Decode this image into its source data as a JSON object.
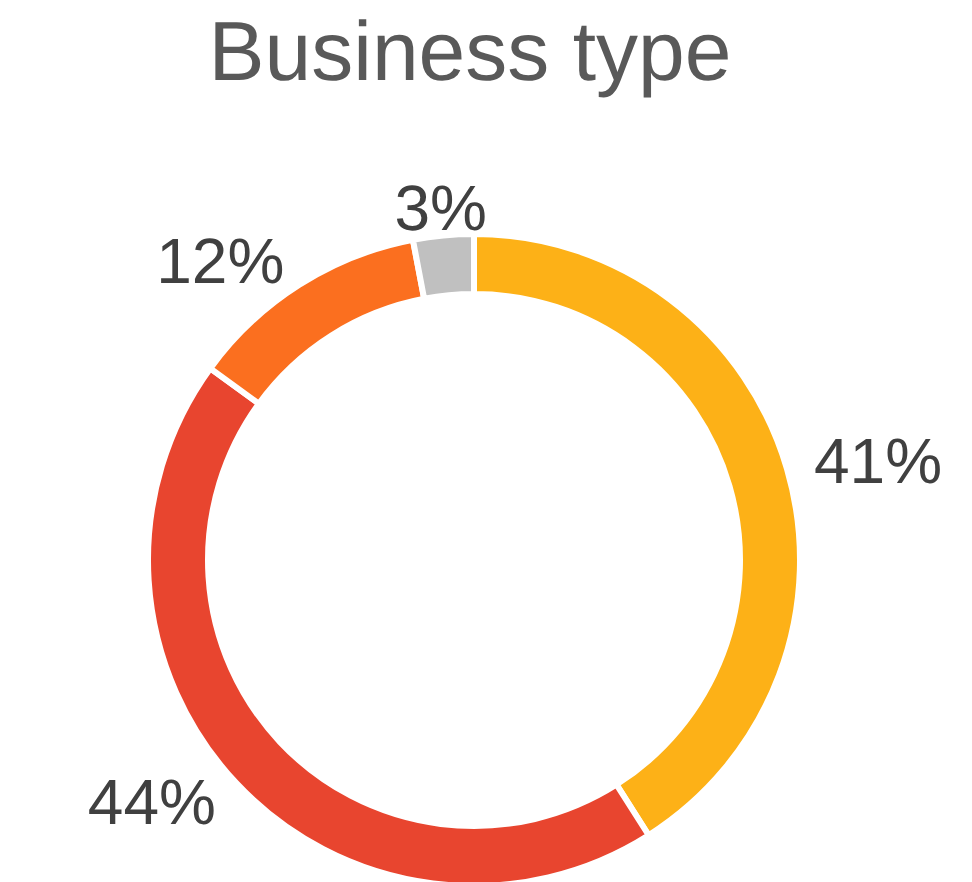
{
  "chart_data": {
    "type": "donut",
    "title": "Business type",
    "categories": [
      null,
      null,
      null,
      null
    ],
    "values": [
      41,
      44,
      12,
      3
    ],
    "colors": [
      "#fdb117",
      "#e8452f",
      "#fb6f1f",
      "#c0c0c0"
    ],
    "value_labels": [
      "41%",
      "44%",
      "12%",
      "3%"
    ],
    "legend": false
  }
}
